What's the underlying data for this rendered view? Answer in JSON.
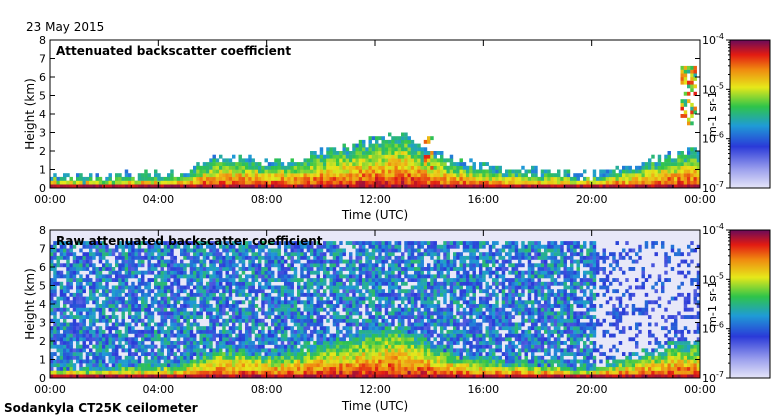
{
  "header": {
    "date": "23 May 2015"
  },
  "footer": {
    "instrument": "Sodankyla CT25K ceilometer"
  },
  "chart_data": [
    {
      "type": "heatmap",
      "title": "Attenuated backscatter coefficient",
      "xlabel": "Time (UTC)",
      "ylabel": "Height (km)",
      "xticks": [
        "00:00",
        "04:00",
        "08:00",
        "12:00",
        "16:00",
        "20:00",
        "00:00"
      ],
      "yticks": [
        "0",
        "1",
        "2",
        "3",
        "4",
        "5",
        "6",
        "7",
        "8"
      ],
      "xlim_hours": [
        0,
        24
      ],
      "ylim_km": [
        0,
        8
      ],
      "colorbar": {
        "unit": "m-1 sr-1",
        "ticks": [
          "10-7",
          "10-6",
          "10-5",
          "10-4"
        ],
        "log10_range": [
          -7,
          -4
        ]
      },
      "features": {
        "boundary_layer_top_km": [
          0.5,
          0.45,
          0.5,
          0.55,
          0.6,
          0.7,
          1.4,
          1.5,
          1.2,
          1.3,
          1.8,
          2.0,
          2.5,
          2.8,
          1.8,
          1.2,
          1.0,
          0.8,
          0.7,
          0.6,
          0.5,
          0.8,
          1.2,
          1.6,
          1.8
        ],
        "elevated_layers": [
          {
            "start_hour": 13.8,
            "end_hour": 14.2,
            "base_km": 1.0,
            "top_km": 2.8
          },
          {
            "start_hour": 23.3,
            "end_hour": 23.9,
            "base_km": 3.5,
            "top_km": 6.5
          }
        ]
      }
    },
    {
      "type": "heatmap",
      "title": "Raw attenuated backscatter coefficient",
      "xlabel": "Time (UTC)",
      "ylabel": "Height (km)",
      "xticks": [
        "00:00",
        "04:00",
        "08:00",
        "12:00",
        "16:00",
        "20:00",
        "00:00"
      ],
      "yticks": [
        "0",
        "1",
        "2",
        "3",
        "4",
        "5",
        "6",
        "7",
        "8"
      ],
      "xlim_hours": [
        0,
        24
      ],
      "ylim_km": [
        0,
        8
      ],
      "colorbar": {
        "unit": "m-1 sr-1",
        "ticks": [
          "10-7",
          "10-6",
          "10-5",
          "10-4"
        ],
        "log10_range": [
          -7,
          -4
        ]
      },
      "features": {
        "noise_top_km": 7.5,
        "dense_noise_hours": [
          0,
          20.2
        ],
        "sparse_noise_hours": [
          20.2,
          24
        ]
      }
    }
  ]
}
